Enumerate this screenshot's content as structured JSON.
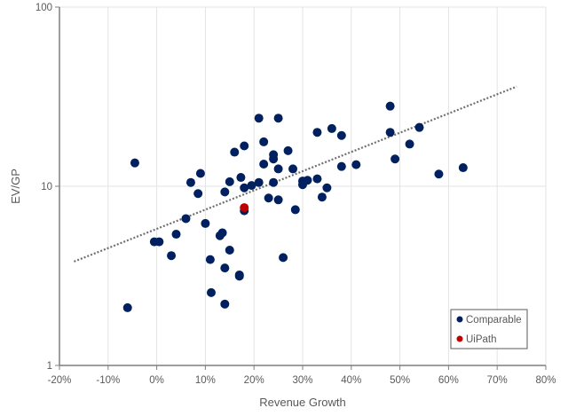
{
  "chart_data": {
    "type": "scatter",
    "xlabel": "Revenue Growth",
    "ylabel": "EV/GP",
    "xlim": [
      -20,
      80
    ],
    "ylim": [
      1,
      100
    ],
    "y_scale": "log",
    "grid": "vertical major gridlines and horizontal at decades",
    "x_ticks": [
      "-20%",
      "-10%",
      "0%",
      "10%",
      "20%",
      "30%",
      "40%",
      "50%",
      "60%",
      "70%",
      "80%"
    ],
    "x_tick_values": [
      -20,
      -10,
      0,
      10,
      20,
      30,
      40,
      50,
      60,
      70,
      80
    ],
    "y_ticks": [
      "1",
      "10",
      "100"
    ],
    "y_tick_values": [
      1,
      10,
      100
    ],
    "legend_position": "bottom-right",
    "colors": {
      "Comparable": "#002060",
      "UiPath": "#C00000",
      "trendline": "#707070"
    },
    "trendline": {
      "style": "dotted",
      "x": [
        -17,
        74
      ],
      "y": [
        3.8,
        36
      ]
    },
    "series": [
      {
        "name": "Comparable",
        "points": [
          [
            -6,
            2.1
          ],
          [
            -4.5,
            13.5
          ],
          [
            -0.5,
            4.9
          ],
          [
            0.5,
            4.9
          ],
          [
            3,
            4.1
          ],
          [
            4,
            5.4
          ],
          [
            6,
            6.6
          ],
          [
            7,
            10.5
          ],
          [
            8.5,
            9.1
          ],
          [
            9,
            11.8
          ],
          [
            10,
            6.2
          ],
          [
            11,
            3.9
          ],
          [
            11.2,
            2.55
          ],
          [
            13,
            5.3
          ],
          [
            13.5,
            5.5
          ],
          [
            14,
            9.3
          ],
          [
            14,
            3.5
          ],
          [
            14,
            2.2
          ],
          [
            15,
            10.6
          ],
          [
            15,
            4.4
          ],
          [
            16,
            15.5
          ],
          [
            17,
            3.2
          ],
          [
            17,
            3.15
          ],
          [
            17.3,
            11.2
          ],
          [
            18,
            9.8
          ],
          [
            18,
            16.8
          ],
          [
            18,
            7.3
          ],
          [
            19.5,
            10.1
          ],
          [
            21,
            24
          ],
          [
            21,
            10.5
          ],
          [
            22,
            17.7
          ],
          [
            22,
            13.3
          ],
          [
            23,
            8.6
          ],
          [
            24,
            15
          ],
          [
            24,
            14.2
          ],
          [
            24,
            10.5
          ],
          [
            25,
            24
          ],
          [
            25,
            12.5
          ],
          [
            25,
            8.4
          ],
          [
            26,
            4
          ],
          [
            27,
            15.8
          ],
          [
            28,
            12.5
          ],
          [
            28.5,
            7.4
          ],
          [
            30,
            10.7
          ],
          [
            30,
            10.2
          ],
          [
            31,
            10.8
          ],
          [
            33,
            11
          ],
          [
            33,
            20
          ],
          [
            34,
            8.7
          ],
          [
            35,
            9.8
          ],
          [
            36,
            21
          ],
          [
            38,
            19.2
          ],
          [
            38,
            12.9
          ],
          [
            41,
            13.2
          ],
          [
            48,
            28
          ],
          [
            48,
            20
          ],
          [
            49,
            14.2
          ],
          [
            52,
            17.2
          ],
          [
            54,
            21.3
          ],
          [
            58,
            11.7
          ],
          [
            63,
            12.7
          ]
        ]
      },
      {
        "name": "UiPath",
        "points": [
          [
            18,
            7.6
          ]
        ]
      }
    ]
  }
}
